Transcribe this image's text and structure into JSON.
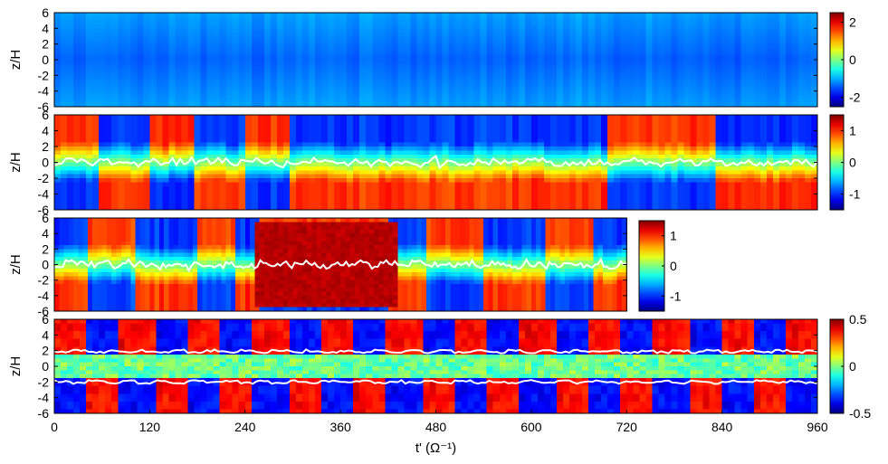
{
  "chart_data": [
    {
      "type": "heatmap",
      "ylabel": "z/H",
      "xlim": [
        0,
        960
      ],
      "ylim": [
        -6,
        6
      ],
      "yticks": [
        "6",
        "4",
        "2",
        "0",
        "-2",
        "-4",
        "-6"
      ],
      "colorbar": {
        "range": [
          -2.5,
          2.5
        ],
        "ticks": [
          "2",
          "0",
          "-2"
        ],
        "tick_values": [
          2,
          0,
          -2
        ]
      },
      "contour": false
    },
    {
      "type": "heatmap",
      "ylabel": "z/H",
      "xlim": [
        0,
        960
      ],
      "ylim": [
        -6,
        6
      ],
      "yticks": [
        "6",
        "4",
        "2",
        "0",
        "-2",
        "-4",
        "-6"
      ],
      "colorbar": {
        "range": [
          -1.5,
          1.5
        ],
        "ticks": [
          "1",
          "0",
          "-1"
        ],
        "tick_values": [
          1,
          0,
          -1
        ]
      },
      "contour": true,
      "contour_color": "#ffffff"
    },
    {
      "type": "heatmap",
      "ylabel": "z/H",
      "xlim": [
        0,
        720
      ],
      "ylim": [
        -6,
        6
      ],
      "yticks": [
        "6",
        "4",
        "2",
        "0",
        "-2",
        "-4",
        "-6"
      ],
      "colorbar": {
        "range": [
          -1.5,
          1.5
        ],
        "ticks": [
          "1",
          "0",
          "-1"
        ],
        "tick_values": [
          1,
          0,
          -1
        ]
      },
      "contour": true,
      "contour_color": "#ffffff"
    },
    {
      "type": "heatmap",
      "ylabel": "z/H",
      "xlabel": "t' (Ω⁻¹)",
      "xlim": [
        0,
        960
      ],
      "ylim": [
        -6,
        6
      ],
      "xticks": [
        "0",
        "120",
        "240",
        "360",
        "480",
        "600",
        "720",
        "840",
        "960"
      ],
      "xtick_values": [
        0,
        120,
        240,
        360,
        480,
        600,
        720,
        840,
        960
      ],
      "yticks": [
        "6",
        "4",
        "2",
        "0",
        "-2",
        "-4",
        "-6"
      ],
      "colorbar": {
        "range": [
          -0.5,
          0.5
        ],
        "ticks": [
          "0.5",
          "0",
          "-0.5"
        ],
        "tick_values": [
          0.5,
          0,
          -0.5
        ]
      },
      "contour": true,
      "contour_color": "#ffffff"
    }
  ],
  "colormap": "jet"
}
